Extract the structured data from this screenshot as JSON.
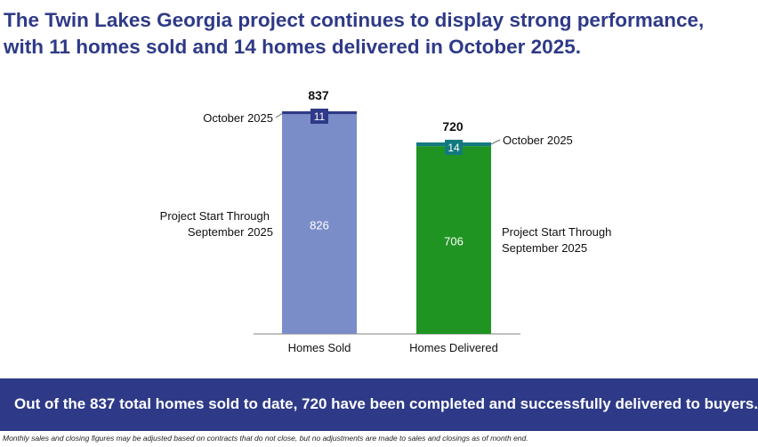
{
  "headline": {
    "line1": "The Twin Lakes Georgia project continues to display strong performance,",
    "line2": "with 11 homes sold and 14 homes delivered in October 2025."
  },
  "chart_data": {
    "type": "bar",
    "stacked": true,
    "categories": [
      "Homes Sold",
      "Homes Delivered"
    ],
    "series": [
      {
        "name": "Project Start Through September 2025",
        "values": [
          826,
          706
        ],
        "colors": [
          "#7b8dc9",
          "#1f9423"
        ]
      },
      {
        "name": "October 2025",
        "values": [
          11,
          14
        ],
        "colors": [
          "#2e3a87",
          "#127a7f"
        ]
      }
    ],
    "totals": [
      837,
      720
    ],
    "legend_labels": {
      "sold_base": [
        "Project Start Through",
        "September 2025"
      ],
      "sold_top": "October 2025",
      "delivered_base": [
        "Project Start Through",
        "September 2025"
      ],
      "delivered_top": "October 2025"
    },
    "ylim": [
      0,
      837
    ],
    "grid": false
  },
  "banner": {
    "text": "Out of the 837 total homes sold to date, 720 have been completed and successfully delivered to buyers."
  },
  "footnote": {
    "text": "Monthly sales and closing figures may be adjusted based on contracts that do not close, but no adjustments are made to sales and closings as of month end."
  }
}
